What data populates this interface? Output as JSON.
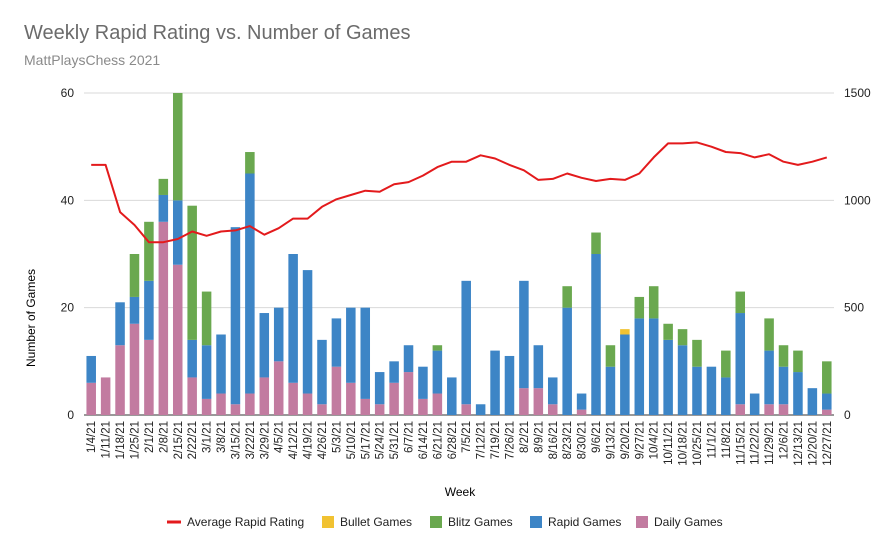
{
  "chart_data": {
    "type": "bar",
    "title": "Weekly Rapid Rating vs. Number of Games",
    "subtitle": "MattPlaysChess 2021",
    "xlabel": "Week",
    "ylabel": "Number of Games",
    "ylim": [
      0,
      60
    ],
    "y2lim": [
      0,
      1500
    ],
    "yticks": [
      0,
      20,
      40,
      60
    ],
    "y2ticks": [
      0,
      500,
      1000,
      1500
    ],
    "grid": true,
    "legend_position": "bottom",
    "legend": [
      "Average Rapid Rating",
      "Bullet Games",
      "Blitz Games",
      "Rapid Games",
      "Daily Games"
    ],
    "categories": [
      "1/4/21",
      "1/11/21",
      "1/18/21",
      "1/25/21",
      "2/1/21",
      "2/8/21",
      "2/15/21",
      "2/22/21",
      "3/1/21",
      "3/8/21",
      "3/15/21",
      "3/22/21",
      "3/29/21",
      "4/5/21",
      "4/12/21",
      "4/19/21",
      "4/26/21",
      "5/3/21",
      "5/10/21",
      "5/17/21",
      "5/24/21",
      "5/31/21",
      "6/7/21",
      "6/14/21",
      "6/21/21",
      "6/28/21",
      "7/5/21",
      "7/12/21",
      "7/19/21",
      "7/26/21",
      "8/2/21",
      "8/9/21",
      "8/16/21",
      "8/23/21",
      "8/30/21",
      "9/6/21",
      "9/13/21",
      "9/20/21",
      "9/27/21",
      "10/4/21",
      "10/11/21",
      "10/18/21",
      "10/25/21",
      "11/1/21",
      "11/8/21",
      "11/15/21",
      "11/22/21",
      "11/29/21",
      "12/6/21",
      "12/13/21",
      "12/20/21",
      "12/27/21"
    ],
    "series": [
      {
        "name": "Daily Games",
        "color": "#c27ba0",
        "values": [
          6,
          7,
          13,
          17,
          14,
          36,
          28,
          7,
          3,
          4,
          2,
          4,
          7,
          10,
          6,
          4,
          2,
          9,
          6,
          3,
          2,
          6,
          8,
          3,
          4,
          0,
          2,
          0,
          0,
          0,
          5,
          5,
          2,
          0,
          1,
          0,
          0,
          0,
          0,
          0,
          0,
          0,
          0,
          0,
          0,
          2,
          0,
          2,
          2,
          0,
          0,
          1
        ]
      },
      {
        "name": "Rapid Games",
        "color": "#3d85c6",
        "values": [
          5,
          0,
          8,
          5,
          11,
          5,
          12,
          7,
          10,
          11,
          33,
          41,
          12,
          10,
          24,
          23,
          12,
          9,
          14,
          17,
          6,
          4,
          5,
          6,
          8,
          7,
          23,
          2,
          12,
          11,
          20,
          8,
          5,
          20,
          3,
          30,
          9,
          15,
          18,
          18,
          14,
          13,
          9,
          9,
          7,
          17,
          4,
          10,
          7,
          8,
          5,
          3
        ]
      },
      {
        "name": "Blitz Games",
        "color": "#6aa84f",
        "values": [
          0,
          0,
          0,
          8,
          11,
          3,
          20,
          25,
          10,
          0,
          0,
          4,
          0,
          0,
          0,
          0,
          0,
          0,
          0,
          0,
          0,
          0,
          0,
          0,
          1,
          0,
          0,
          0,
          0,
          0,
          0,
          0,
          0,
          4,
          0,
          4,
          4,
          0,
          4,
          6,
          3,
          3,
          5,
          0,
          5,
          4,
          0,
          6,
          4,
          4,
          0,
          6
        ]
      },
      {
        "name": "Bullet Games",
        "color": "#f1c232",
        "values": [
          0,
          0,
          0,
          0,
          0,
          0,
          0,
          0,
          0,
          0,
          0,
          0,
          0,
          0,
          0,
          0,
          0,
          0,
          0,
          0,
          0,
          0,
          0,
          0,
          0,
          0,
          0,
          0,
          0,
          0,
          0,
          0,
          0,
          0,
          0,
          0,
          0,
          1,
          0,
          0,
          0,
          0,
          0,
          0,
          0,
          0,
          0,
          0,
          0,
          0,
          0,
          0
        ]
      },
      {
        "name": "Average Rapid Rating",
        "color": "#e31a1c",
        "axis": "right",
        "type": "line",
        "values": [
          1165,
          1165,
          945,
          885,
          805,
          805,
          820,
          855,
          835,
          855,
          860,
          880,
          840,
          870,
          915,
          915,
          970,
          1005,
          1025,
          1045,
          1040,
          1075,
          1085,
          1115,
          1155,
          1180,
          1180,
          1210,
          1195,
          1165,
          1140,
          1095,
          1100,
          1125,
          1105,
          1090,
          1100,
          1095,
          1125,
          1200,
          1265,
          1265,
          1270,
          1250,
          1225,
          1220,
          1200,
          1215,
          1180,
          1165,
          1180,
          1200
        ]
      }
    ]
  }
}
